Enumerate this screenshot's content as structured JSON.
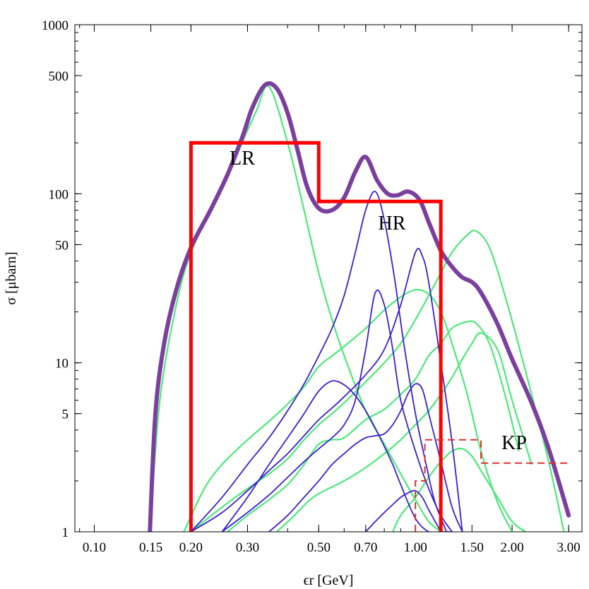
{
  "chart_data": {
    "type": "line",
    "xlabel": "ϵr [GeV]",
    "ylabel": "σ [μbarn]",
    "x_scale": "log",
    "y_scale": "log",
    "xlim": [
      0.087,
      3.3
    ],
    "ylim": [
      1,
      1000
    ],
    "x_ticks": [
      "0.10",
      "0.15",
      "0.20",
      "0.30",
      "0.50",
      "0.70",
      "1.00",
      "1.50",
      "2.00",
      "3.00"
    ],
    "y_ticks": [
      "1",
      "5",
      "10",
      "50",
      "100",
      "500",
      "1000"
    ],
    "grid": false,
    "colors": {
      "total": "#7b3f9e",
      "green": "#4de87a",
      "blue": "#3a1fd0",
      "box": "#ff0000",
      "box_dashed": "#e03030"
    },
    "annotations": [
      "LR",
      "HR",
      "KP"
    ],
    "total_curve": {
      "color": "#7b3f9e",
      "x": [
        0.149,
        0.155,
        0.165,
        0.18,
        0.2,
        0.23,
        0.26,
        0.29,
        0.31,
        0.34,
        0.37,
        0.4,
        0.43,
        0.46,
        0.5,
        0.55,
        0.6,
        0.65,
        0.7,
        0.76,
        0.82,
        0.88,
        0.95,
        1.03,
        1.1,
        1.2,
        1.3,
        1.4,
        1.5,
        1.6,
        1.8,
        2.0,
        2.3,
        2.6,
        3.0
      ],
      "y": [
        1,
        5,
        13,
        27,
        48,
        80,
        130,
        220,
        320,
        440,
        420,
        300,
        180,
        110,
        82,
        80,
        95,
        135,
        165,
        120,
        100,
        98,
        103,
        92,
        68,
        46,
        37,
        32,
        30,
        26,
        17,
        10.5,
        5.8,
        3.1,
        1.25
      ]
    },
    "green_curves": [
      {
        "x": [
          0.149,
          0.16,
          0.18,
          0.2,
          0.23,
          0.26,
          0.29,
          0.32,
          0.35,
          0.4,
          0.45,
          0.5,
          0.55,
          0.6,
          0.7,
          0.8,
          0.9,
          1.0,
          1.1,
          1.2
        ],
        "y": [
          1,
          6,
          22,
          45,
          78,
          125,
          205,
          310,
          430,
          200,
          80,
          34,
          18,
          11,
          5.2,
          3.3,
          2.2,
          1.55,
          1.15,
          1
        ]
      },
      {
        "x": [
          0.19,
          0.22,
          0.25,
          0.3,
          0.35,
          0.4,
          0.45,
          0.5,
          0.55,
          0.6,
          0.7,
          0.8,
          0.9,
          1.0,
          1.1,
          1.2,
          1.3,
          1.45,
          1.6,
          1.8,
          2.0
        ],
        "y": [
          1,
          1.8,
          2.5,
          3.5,
          4.5,
          5.7,
          7.2,
          9.5,
          11,
          12.5,
          16,
          20.5,
          24.5,
          27,
          25.5,
          20,
          13,
          6.5,
          3,
          1.5,
          1
        ]
      },
      {
        "x": [
          0.2,
          0.25,
          0.3,
          0.35,
          0.4,
          0.45,
          0.5,
          0.55,
          0.6,
          0.7,
          0.8,
          0.9,
          1.0,
          1.1,
          1.2,
          1.3,
          1.45,
          1.55,
          1.7,
          1.9,
          2.2,
          2.6,
          2.9
        ],
        "y": [
          1,
          1.4,
          1.8,
          2.2,
          2.7,
          3.5,
          4.3,
          5,
          5.8,
          7.7,
          10,
          13,
          18,
          25,
          34,
          45,
          57,
          60,
          48,
          25,
          9,
          2.6,
          1
        ]
      },
      {
        "x": [
          0.26,
          0.3,
          0.35,
          0.4,
          0.45,
          0.5,
          0.55,
          0.6,
          0.7,
          0.8,
          0.9,
          1.0,
          1.1,
          1.2,
          1.3,
          1.45,
          1.55,
          1.7,
          1.9,
          2.1
        ],
        "y": [
          1,
          1.25,
          1.55,
          1.9,
          2.5,
          3.3,
          3.5,
          3.6,
          4.6,
          5.3,
          6.5,
          8,
          11,
          13,
          16,
          17.5,
          17,
          13,
          6.5,
          3
        ]
      },
      {
        "x": [
          0.37,
          0.42,
          0.47,
          0.52,
          0.6,
          0.7,
          0.8,
          0.9,
          1.0,
          1.1,
          1.2,
          1.3,
          1.4,
          1.5,
          1.6,
          1.8,
          2.0,
          2.3
        ],
        "y": [
          1,
          1.25,
          1.55,
          1.75,
          2.0,
          2.4,
          2.9,
          3.5,
          4.3,
          5.2,
          6.5,
          8.2,
          10.5,
          13,
          15,
          12,
          6,
          2.5
        ]
      },
      {
        "x": [
          0.85,
          0.9,
          1.0,
          1.1,
          1.2,
          1.3,
          1.4,
          1.5,
          1.6,
          1.8,
          2.0,
          2.2
        ],
        "y": [
          1,
          1.25,
          1.6,
          2.1,
          2.6,
          3.0,
          3.1,
          2.8,
          2.3,
          1.6,
          1.15,
          1
        ]
      }
    ],
    "blue_curves": [
      {
        "x": [
          0.2,
          0.25,
          0.3,
          0.35,
          0.4,
          0.45,
          0.5,
          0.55,
          0.6,
          0.65,
          0.7,
          0.75,
          0.8,
          0.86,
          0.92,
          1.0,
          1.08,
          1.15,
          1.25
        ],
        "y": [
          1,
          1.6,
          2.5,
          3.6,
          5.2,
          7.5,
          11,
          16,
          25,
          45,
          80,
          103,
          70,
          32,
          13,
          5,
          2.5,
          1.5,
          1
        ]
      },
      {
        "x": [
          0.2,
          0.25,
          0.3,
          0.35,
          0.4,
          0.45,
          0.5,
          0.55,
          0.6,
          0.7,
          0.8,
          0.9,
          1.0,
          1.05,
          1.1,
          1.2,
          1.3,
          1.4
        ],
        "y": [
          1,
          1.3,
          1.75,
          2.3,
          2.9,
          3.7,
          4.6,
          5.4,
          6.3,
          8.5,
          12,
          22,
          45,
          43,
          30,
          10,
          3.4,
          1
        ]
      },
      {
        "x": [
          0.25,
          0.3,
          0.35,
          0.4,
          0.45,
          0.5,
          0.55,
          0.6,
          0.65,
          0.7,
          0.75,
          0.8,
          0.85,
          0.9,
          1.0,
          1.1,
          1.2,
          1.3
        ],
        "y": [
          1,
          1.3,
          1.65,
          2.1,
          2.6,
          3.1,
          3.6,
          4.3,
          6,
          12,
          26,
          22,
          12,
          6,
          3,
          1.8,
          1.25,
          1
        ]
      },
      {
        "x": [
          0.25,
          0.3,
          0.35,
          0.4,
          0.45,
          0.5,
          0.55,
          0.6,
          0.65,
          0.7,
          0.75,
          0.8,
          0.85,
          0.9,
          1.0,
          1.1,
          1.2,
          1.3
        ],
        "y": [
          1,
          1.6,
          2.5,
          3.6,
          5,
          6.8,
          7.8,
          7.4,
          6.4,
          5.2,
          4.1,
          3.2,
          2.5,
          1.9,
          1.2,
          1,
          1,
          1
        ]
      },
      {
        "x": [
          0.35,
          0.4,
          0.45,
          0.5,
          0.55,
          0.6,
          0.65,
          0.7,
          0.75,
          0.8,
          0.85,
          0.9,
          0.95,
          1.0,
          1.05,
          1.1,
          1.2,
          1.3,
          1.4
        ],
        "y": [
          1,
          1.25,
          1.6,
          2.0,
          2.5,
          2.9,
          3.3,
          3.6,
          3.7,
          3.8,
          4.3,
          5.2,
          6.6,
          7.5,
          7,
          5,
          2.6,
          1.4,
          1
        ]
      },
      {
        "x": [
          0.7,
          0.75,
          0.8,
          0.85,
          0.9,
          0.95,
          1.0,
          1.05,
          1.1,
          1.2
        ],
        "y": [
          1,
          1.15,
          1.3,
          1.45,
          1.6,
          1.7,
          1.75,
          1.6,
          1.35,
          1
        ]
      }
    ],
    "solid_box": {
      "color": "#ff0000",
      "x": [
        0.2,
        0.2,
        0.5,
        0.5,
        1.2,
        1.2
      ],
      "y": [
        1,
        200,
        200,
        90,
        90,
        1
      ]
    },
    "dashed_box": {
      "color": "#e03030",
      "x": [
        1.0,
        1.0,
        1.07,
        1.07,
        1.6,
        1.6,
        3.0
      ],
      "y": [
        1,
        2,
        2,
        3.5,
        3.5,
        2.55,
        2.55
      ]
    }
  }
}
